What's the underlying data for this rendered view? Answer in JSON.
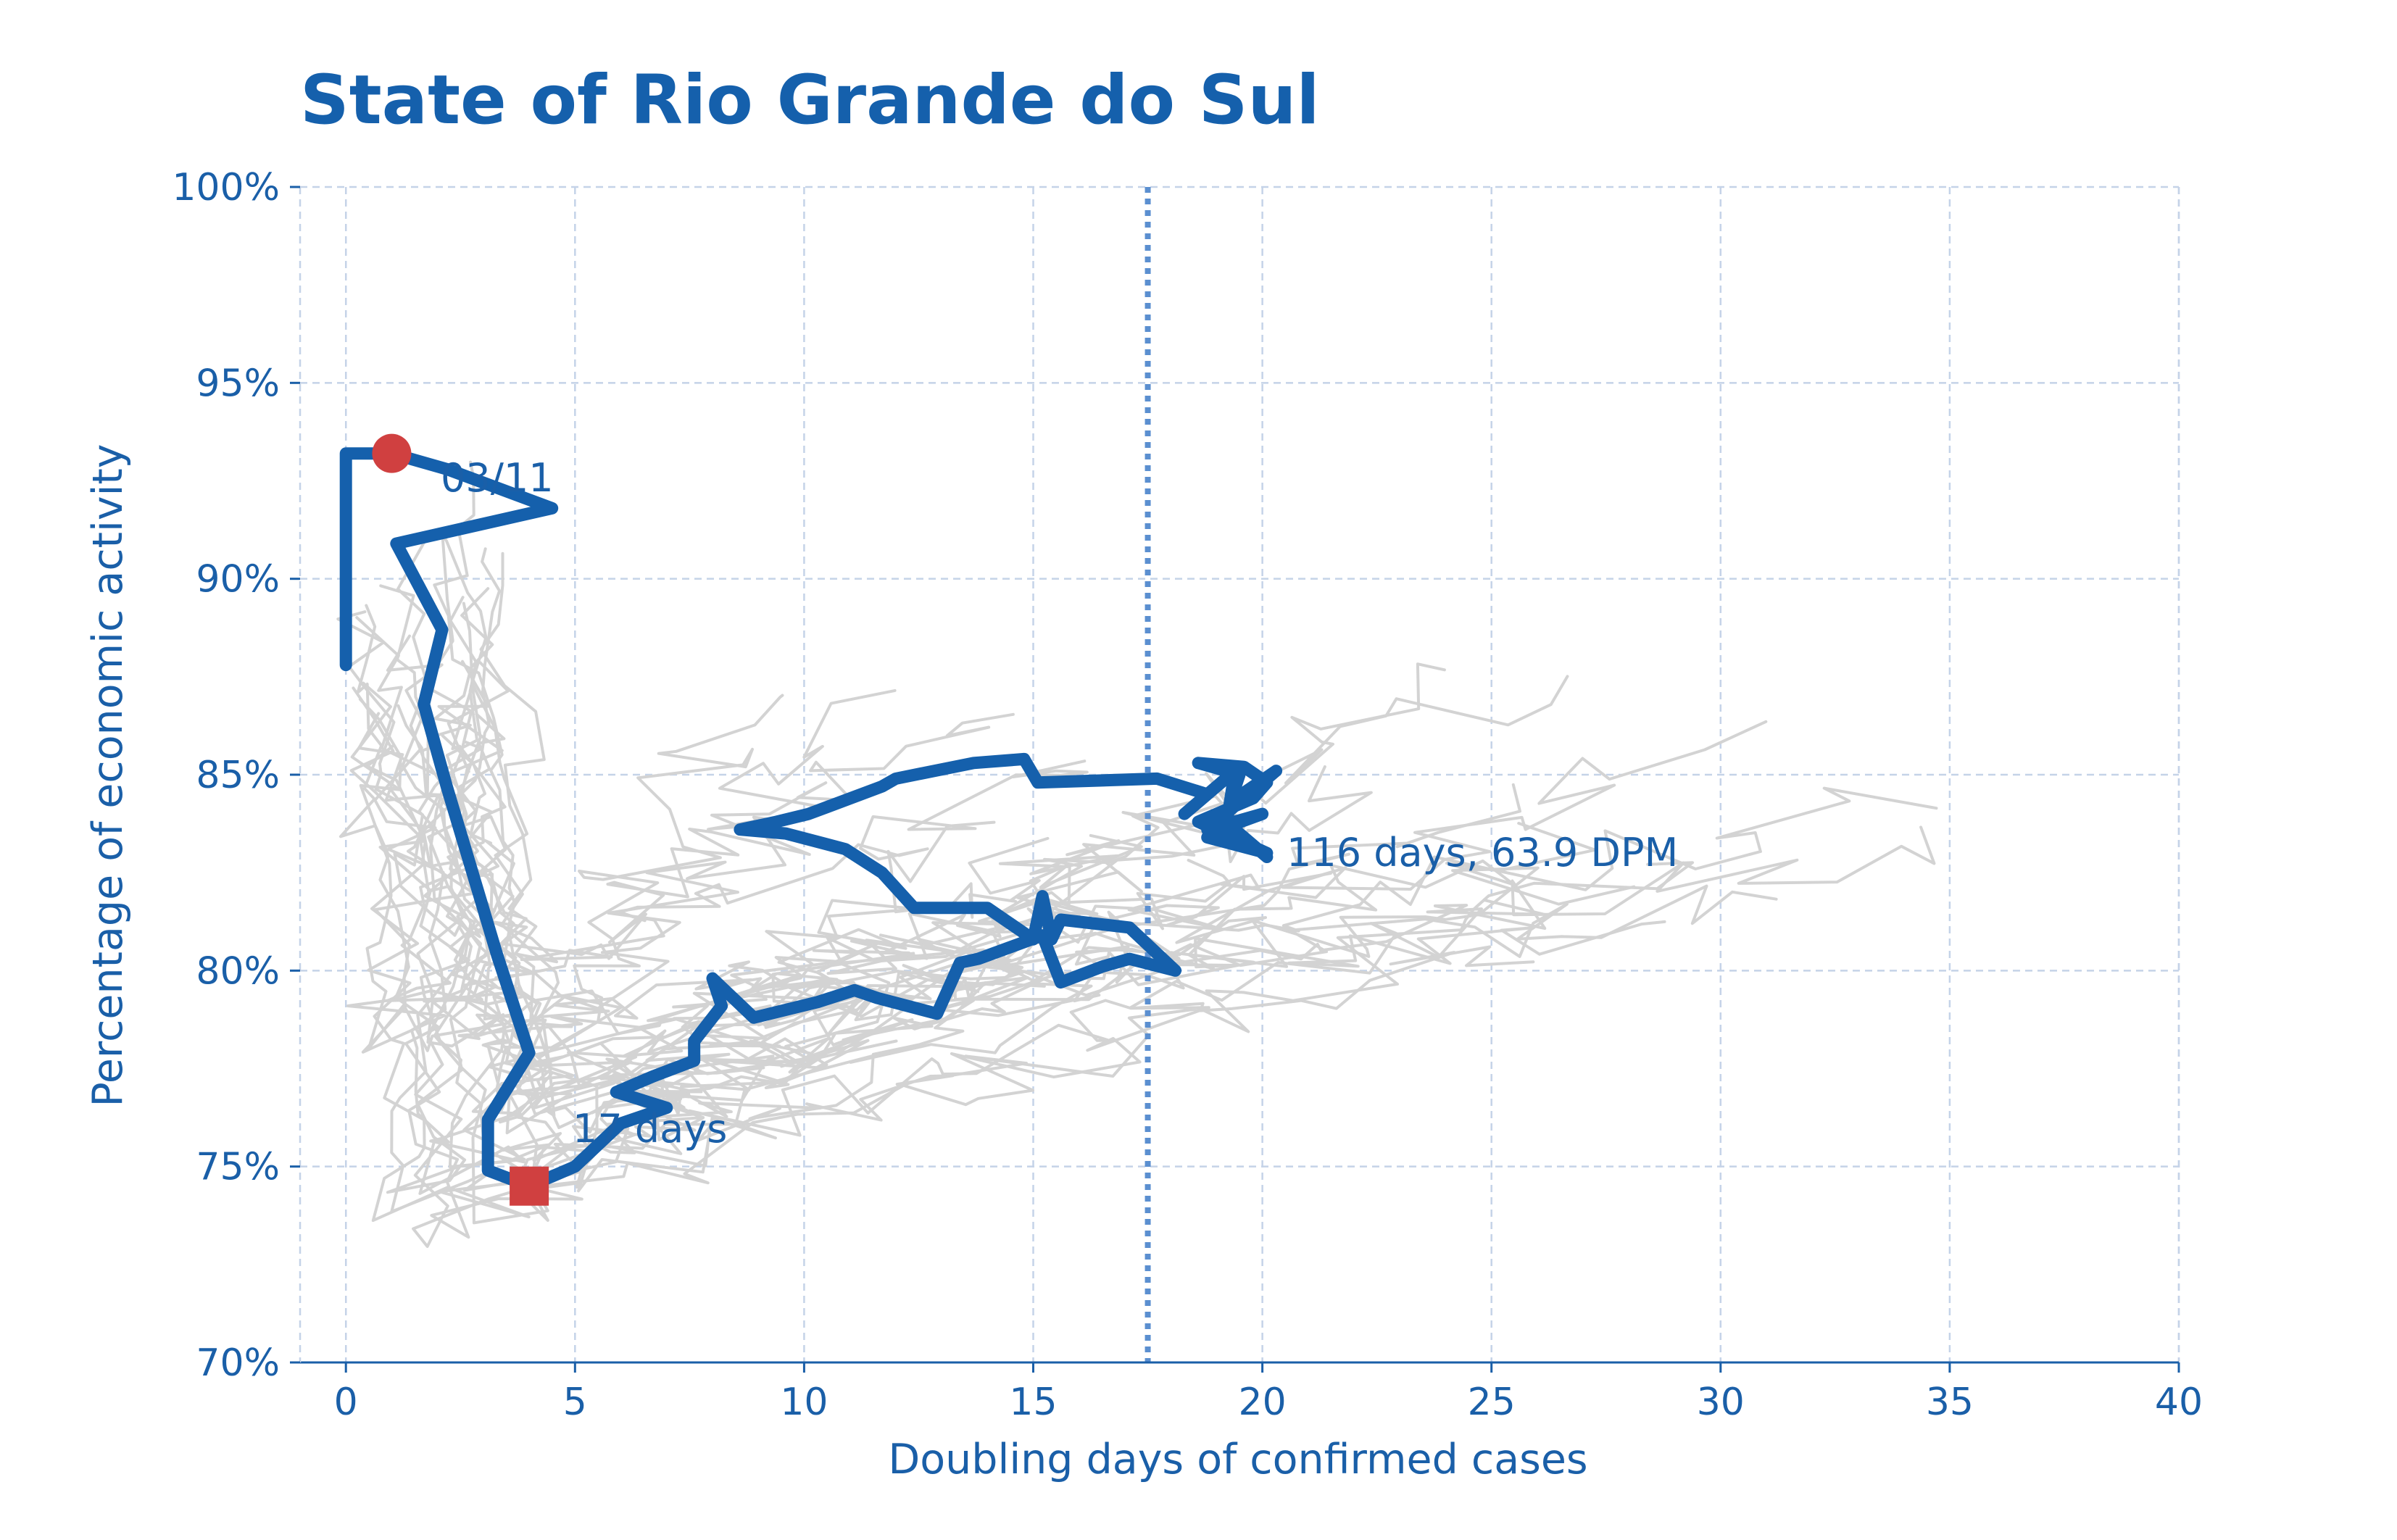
{
  "chart_data": {
    "type": "line",
    "title": "State of Rio Grande do Sul",
    "xlabel": "Doubling days of confirmed cases",
    "ylabel": "Percentage of economic activity",
    "xlim": [
      -1,
      40
    ],
    "ylim": [
      70,
      100
    ],
    "x_ticks": [
      "0",
      "5",
      "10",
      "15",
      "20",
      "25",
      "30",
      "35",
      "40"
    ],
    "y_ticks": [
      "70%",
      "75%",
      "80%",
      "85%",
      "90%",
      "95%",
      "100%"
    ],
    "grid": true,
    "reference_line_x": 17.5,
    "annotations": {
      "start_label": "03/11",
      "min_label": "17 days",
      "end_label": "116 days, 63.9 DPM"
    },
    "markers": {
      "start": {
        "x": 1.0,
        "y": 93.2
      },
      "minimum": {
        "x": 4.0,
        "y": 74.5
      }
    },
    "colors": {
      "highlight": "#1560ac",
      "background_series": "#d3d3d3",
      "marker": "#d04040",
      "grid": "#c5d3e8",
      "reference_line": "#5b8fd0"
    },
    "series": [
      {
        "name": "Rio Grande do Sul",
        "points": [
          [
            0,
            87.8
          ],
          [
            0,
            93.2
          ],
          [
            1.0,
            93.2
          ],
          [
            2.2,
            92.8
          ],
          [
            4.5,
            91.8
          ],
          [
            1.1,
            90.9
          ],
          [
            2.1,
            88.7
          ],
          [
            1.7,
            86.8
          ],
          [
            2.2,
            84.7
          ],
          [
            3.3,
            80.4
          ],
          [
            4.0,
            77.9
          ],
          [
            3.1,
            76.2
          ],
          [
            3.1,
            74.9
          ],
          [
            4.0,
            74.5
          ],
          [
            5.0,
            75.0
          ],
          [
            6.0,
            76.1
          ],
          [
            7.0,
            76.5
          ],
          [
            5.9,
            76.9
          ],
          [
            6.7,
            77.3
          ],
          [
            7.6,
            77.7
          ],
          [
            7.6,
            78.2
          ],
          [
            8.2,
            79.1
          ],
          [
            8.0,
            79.8
          ],
          [
            8.9,
            78.8
          ],
          [
            10.3,
            79.2
          ],
          [
            11.1,
            79.5
          ],
          [
            11.6,
            79.3
          ],
          [
            12.9,
            78.9
          ],
          [
            13.4,
            80.2
          ],
          [
            13.8,
            80.3
          ],
          [
            15.2,
            80.9
          ],
          [
            15.6,
            79.7
          ],
          [
            16.5,
            80.1
          ],
          [
            17.1,
            80.3
          ],
          [
            18.1,
            80.0
          ],
          [
            17.1,
            81.1
          ],
          [
            15.6,
            81.3
          ],
          [
            15.4,
            80.8
          ],
          [
            15.2,
            81.9
          ],
          [
            15.0,
            80.8
          ],
          [
            14.0,
            81.6
          ],
          [
            12.4,
            81.6
          ],
          [
            11.7,
            82.5
          ],
          [
            10.9,
            83.1
          ],
          [
            9.6,
            83.5
          ],
          [
            8.6,
            83.6
          ],
          [
            9.4,
            83.8
          ],
          [
            10.1,
            84.0
          ],
          [
            11.7,
            84.7
          ],
          [
            12.0,
            84.9
          ],
          [
            13.7,
            85.3
          ],
          [
            14.8,
            85.4
          ],
          [
            15.1,
            84.8
          ],
          [
            17.7,
            84.9
          ],
          [
            18.8,
            84.5
          ],
          [
            18.3,
            84.0
          ],
          [
            19.4,
            85.1
          ],
          [
            19.2,
            83.6
          ],
          [
            18.8,
            83.4
          ],
          [
            20.1,
            83.0
          ],
          [
            18.6,
            83.8
          ],
          [
            19.8,
            84.4
          ],
          [
            20.1,
            84.8
          ],
          [
            19.6,
            85.2
          ],
          [
            18.6,
            85.3
          ],
          [
            19.5,
            85.0
          ],
          [
            19.3,
            84.3
          ],
          [
            20.3,
            85.1
          ],
          [
            18.8,
            83.6
          ],
          [
            20.0,
            84.0
          ],
          [
            19.3,
            83.7
          ],
          [
            20.1,
            82.9
          ]
        ]
      }
    ]
  }
}
